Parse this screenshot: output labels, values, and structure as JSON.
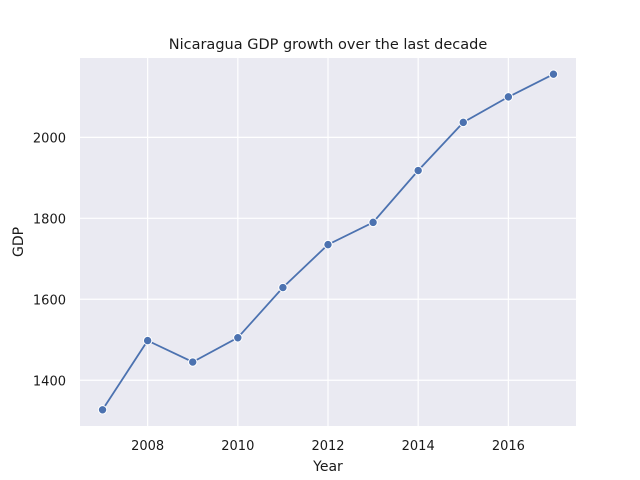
{
  "chart_data": {
    "type": "line",
    "title": "Nicaragua GDP growth over the last decade",
    "xlabel": "Year",
    "ylabel": "GDP",
    "x": [
      2007,
      2008,
      2009,
      2010,
      2011,
      2012,
      2013,
      2014,
      2015,
      2016,
      2017
    ],
    "series": [
      {
        "values": [
          1327,
          1498,
          1445,
          1505,
          1629,
          1735,
          1790,
          1918,
          2037,
          2100,
          2156
        ],
        "color": "#4c72b0"
      }
    ],
    "xlim": [
      2006.5,
      2017.5
    ],
    "ylim": [
      1287,
      2196
    ],
    "x_ticks": [
      2008,
      2010,
      2012,
      2014,
      2016
    ],
    "y_ticks": [
      1400,
      1600,
      1800,
      2000
    ],
    "grid": true,
    "style": "seaborn-darkgrid",
    "marker": "circle"
  }
}
